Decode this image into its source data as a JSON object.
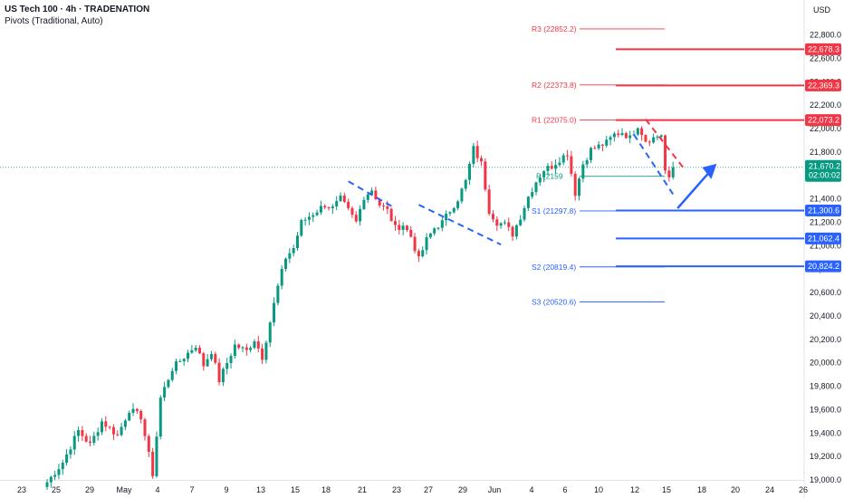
{
  "header": {
    "title": "US Tech 100 · 4h · TRADENATION",
    "indicator": "Pivots (Traditional, Auto)"
  },
  "currency_label": "USD",
  "colors": {
    "up": "#089981",
    "down": "#f23645",
    "resistance": "#f23645",
    "support": "#2962ff",
    "pivot": "#089981",
    "current_price_line": "#089981"
  },
  "chart_data": {
    "type": "candlestick",
    "symbol": "US Tech 100",
    "timeframe": "4h",
    "ylim": [
      19000,
      22850
    ],
    "y_ticks": [
      19000,
      19200,
      19400,
      19600,
      19800,
      20000,
      20200,
      20400,
      20600,
      20800,
      21000,
      21200,
      21400,
      21600,
      21800,
      22000,
      22200,
      22400,
      22600,
      22800
    ],
    "y_tick_labels": [
      "19,000.0",
      "19,200.0",
      "19,400.0",
      "19,600.0",
      "19,800.0",
      "20,000.0",
      "20,200.0",
      "20,400.0",
      "20,600.0",
      "20,800.0",
      "21,000.0",
      "21,200.0",
      "21,400.0",
      "21,600.0",
      "21,800.0",
      "22,000.0",
      "22,200.0",
      "22,400.0",
      "22,600.0",
      "22,800.0"
    ],
    "x_ticks": [
      "23",
      "25",
      "29",
      "May",
      "4",
      "7",
      "9",
      "13",
      "15",
      "18",
      "21",
      "23",
      "27",
      "29",
      "Jun",
      "4",
      "6",
      "10",
      "12",
      "15",
      "18",
      "20",
      "24",
      "26"
    ],
    "close_path": [
      [
        0,
        18980
      ],
      [
        4,
        19150
      ],
      [
        8,
        19420
      ],
      [
        11,
        19300
      ],
      [
        14,
        19500
      ],
      [
        18,
        19380
      ],
      [
        21,
        19600
      ],
      [
        24,
        19540
      ],
      [
        27,
        19050
      ],
      [
        29,
        19700
      ],
      [
        32,
        19950
      ],
      [
        35,
        20050
      ],
      [
        38,
        20150
      ],
      [
        40,
        19980
      ],
      [
        42,
        20100
      ],
      [
        44,
        19850
      ],
      [
        46,
        20000
      ],
      [
        48,
        20150
      ],
      [
        51,
        20100
      ],
      [
        53,
        20200
      ],
      [
        55,
        20050
      ],
      [
        57,
        20350
      ],
      [
        59,
        20650
      ],
      [
        61,
        20900
      ],
      [
        63,
        20980
      ],
      [
        65,
        21200
      ],
      [
        67,
        21250
      ],
      [
        69,
        21300
      ],
      [
        71,
        21350
      ],
      [
        73,
        21320
      ],
      [
        75,
        21400
      ],
      [
        77,
        21300
      ],
      [
        79,
        21200
      ],
      [
        81,
        21420
      ],
      [
        83,
        21480
      ],
      [
        85,
        21350
      ],
      [
        87,
        21300
      ],
      [
        89,
        21150
      ],
      [
        91,
        21180
      ],
      [
        93,
        21080
      ],
      [
        95,
        20880
      ],
      [
        97,
        21050
      ],
      [
        99,
        21150
      ],
      [
        101,
        21200
      ],
      [
        103,
        21300
      ],
      [
        105,
        21400
      ],
      [
        107,
        21550
      ],
      [
        109,
        21830
      ],
      [
        111,
        21700
      ],
      [
        113,
        21300
      ],
      [
        115,
        21200
      ],
      [
        117,
        21180
      ],
      [
        119,
        21100
      ],
      [
        121,
        21250
      ],
      [
        123,
        21420
      ],
      [
        125,
        21550
      ],
      [
        127,
        21650
      ],
      [
        129,
        21680
      ],
      [
        131,
        21740
      ],
      [
        133,
        21790
      ],
      [
        135,
        21450
      ],
      [
        137,
        21700
      ],
      [
        139,
        21820
      ],
      [
        141,
        21850
      ],
      [
        143,
        21880
      ],
      [
        145,
        21950
      ],
      [
        147,
        21970
      ],
      [
        149,
        21920
      ],
      [
        151,
        22030
      ],
      [
        153,
        21900
      ],
      [
        155,
        21920
      ],
      [
        157,
        21950
      ],
      [
        158,
        21640
      ],
      [
        159,
        21560
      ],
      [
        160,
        21670
      ]
    ],
    "last_price": 21670.2,
    "last_price_label": "21,670.2",
    "countdown": "02:00:02",
    "pivots": [
      {
        "name": "R3",
        "label": "R3 (22852.2)",
        "value": 22852.2,
        "role": "resistance"
      },
      {
        "name": "R2",
        "label": "R2 (22373.8)",
        "value": 22373.8,
        "role": "resistance"
      },
      {
        "name": "R1",
        "label": "R1 (22075.0)",
        "value": 22075.0,
        "role": "resistance"
      },
      {
        "name": "P",
        "label": "P (2159",
        "value": 21593,
        "role": "pivot"
      },
      {
        "name": "S1",
        "label": "S1 (21297.8)",
        "value": 21297.8,
        "role": "support"
      },
      {
        "name": "S2",
        "label": "S2 (20819.4)",
        "value": 20819.4,
        "role": "support"
      },
      {
        "name": "S3",
        "label": "S3 (20520.6)",
        "value": 20520.6,
        "role": "support"
      }
    ],
    "key_levels": [
      {
        "value": 22678.3,
        "label": "22,678.3",
        "role": "resistance"
      },
      {
        "value": 22369.3,
        "label": "22,369.3",
        "role": "resistance"
      },
      {
        "value": 22073.2,
        "label": "22,073.2",
        "role": "resistance"
      },
      {
        "value": 21300.6,
        "label": "21,300.6",
        "role": "support"
      },
      {
        "value": 21062.4,
        "label": "21,062.4",
        "role": "support"
      },
      {
        "value": 20824.2,
        "label": "20,824.2",
        "role": "support"
      }
    ],
    "trendlines": [
      {
        "name": "falling-channel-upper",
        "role": "resistance-dashed",
        "from": [
          77,
          21550
        ],
        "to": [
          89,
          21320
        ]
      },
      {
        "name": "falling-channel-lower",
        "role": "support-dashed",
        "from": [
          95,
          21350
        ],
        "to": [
          116,
          21010
        ]
      },
      {
        "name": "flag-upper",
        "role": "resistance-dashed",
        "from": [
          153,
          22080
        ],
        "to": [
          163,
          21650
        ]
      },
      {
        "name": "flag-lower",
        "role": "support-dashed",
        "from": [
          150,
          21950
        ],
        "to": [
          160,
          21440
        ]
      }
    ],
    "projection_arrow": {
      "from": [
        160,
        21320
      ],
      "to": [
        167,
        21700
      ]
    }
  }
}
